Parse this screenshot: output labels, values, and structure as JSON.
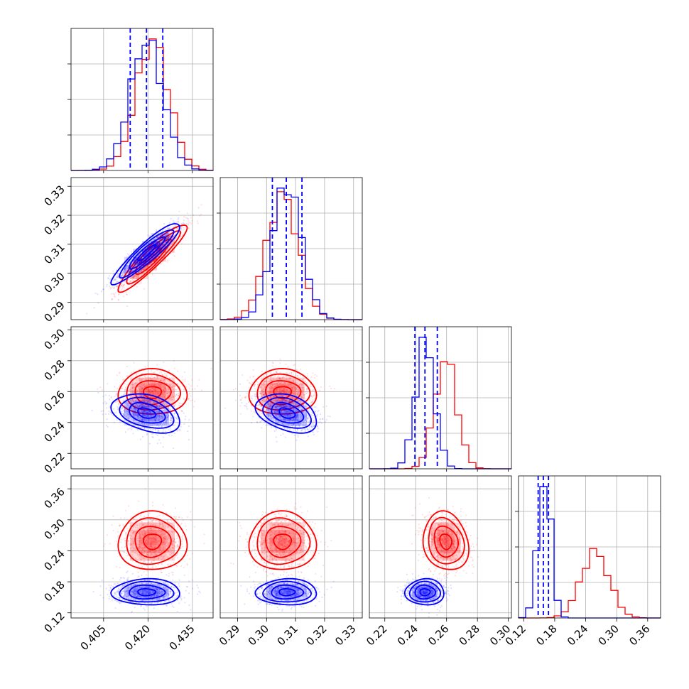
{
  "figure": {
    "type": "corner-plot",
    "grid": true,
    "colors": {
      "series_a": "#ff0000",
      "series_b": "#0000ff",
      "quantile_lines": "#0000ff"
    }
  },
  "chart_data": {
    "type": "corner",
    "parameters": [
      {
        "ticks": [
          0.405,
          0.42,
          0.435
        ],
        "tick_labels": [
          "0.405",
          "0.420",
          "0.435"
        ],
        "range": [
          0.394,
          0.442
        ]
      },
      {
        "ticks": [
          0.29,
          0.3,
          0.31,
          0.32,
          0.33
        ],
        "tick_labels": [
          "0.29",
          "0.30",
          "0.31",
          "0.32",
          "0.33"
        ],
        "range": [
          0.284,
          0.333
        ]
      },
      {
        "ticks": [
          0.22,
          0.24,
          0.26,
          0.28,
          0.3
        ],
        "tick_labels": [
          "0.22",
          "0.24",
          "0.26",
          "0.28",
          "0.30"
        ],
        "range": [
          0.21,
          0.302
        ]
      },
      {
        "ticks": [
          0.12,
          0.18,
          0.24,
          0.3,
          0.36
        ],
        "tick_labels": [
          "0.12",
          "0.18",
          "0.24",
          "0.30",
          "0.36"
        ],
        "range": [
          0.11,
          0.385
        ]
      }
    ],
    "series": [
      {
        "color": "#ff0000",
        "means": [
          0.4215,
          0.3055,
          0.2595,
          0.258
        ],
        "sigmas": [
          0.0055,
          0.0055,
          0.007,
          0.027
        ],
        "correlation": [
          [
            1,
            0.92,
            0,
            0
          ],
          [
            0.92,
            1,
            0,
            0
          ],
          [
            0,
            0,
            1,
            -0.15
          ],
          [
            0,
            0,
            -0.15,
            1
          ]
        ]
      },
      {
        "color": "#0000ff",
        "means": [
          0.4195,
          0.307,
          0.246,
          0.16
        ],
        "sigmas": [
          0.0055,
          0.005,
          0.006,
          0.012
        ],
        "correlation": [
          [
            1,
            0.92,
            -0.35,
            0
          ],
          [
            0.92,
            1,
            -0.35,
            0
          ],
          [
            -0.35,
            -0.35,
            1,
            0
          ],
          [
            0,
            0,
            0,
            1
          ]
        ]
      }
    ],
    "quantile_lines": [
      [
        0.414,
        0.4195,
        0.425
      ],
      [
        0.302,
        0.3068,
        0.3122
      ],
      [
        0.2395,
        0.246,
        0.254
      ],
      [
        0.148,
        0.158,
        0.168
      ]
    ]
  }
}
